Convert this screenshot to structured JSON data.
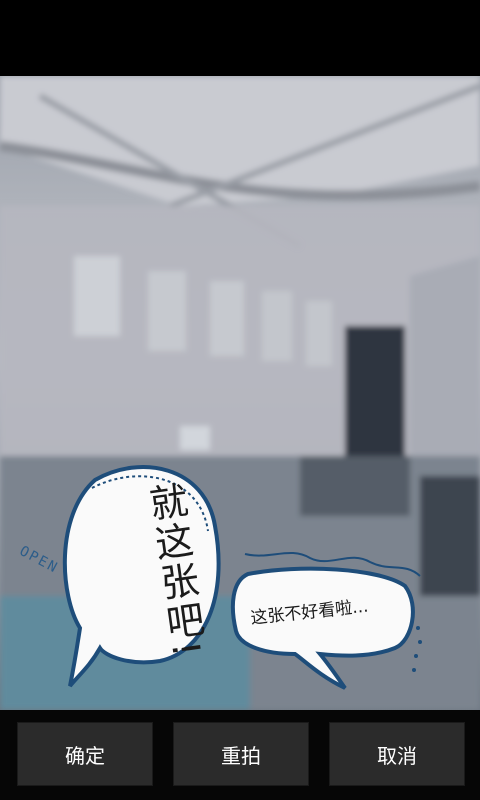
{
  "bubbles": {
    "main_text": "就这张吧!",
    "secondary_text": "这张不好看啦...",
    "open_label": "OPEN"
  },
  "toolbar": {
    "confirm_label": "确定",
    "retake_label": "重拍",
    "cancel_label": "取消"
  },
  "colors": {
    "bubble_outline": "#1e4d7a",
    "button_bg": "#2b2b2b"
  }
}
